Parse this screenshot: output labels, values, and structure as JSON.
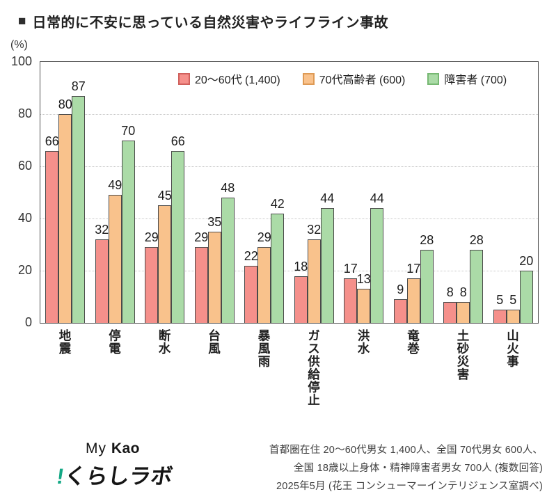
{
  "header": {
    "marker": "■",
    "title": "日常的に不安に思っている自然災害やライフライン事故"
  },
  "chart_data": {
    "type": "bar",
    "title": "日常的に不安に思っている自然災害やライフライン事故",
    "y_unit": "(%)",
    "ylim": [
      0,
      100
    ],
    "yticks": [
      0,
      20,
      40,
      60,
      80,
      100
    ],
    "grid": "horizontal dotted lines at 20, 40, 60, 80",
    "legend_position": "inside plot, top center-right",
    "bar_border_color": "#4a4a4a",
    "categories": [
      "地震",
      "停電",
      "断水",
      "台風",
      "暴風雨",
      "ガス供給停止",
      "洪水",
      "竜巻",
      "土砂災害",
      "山火事"
    ],
    "series": [
      {
        "name": "20〜60代 (1,400)",
        "fill": "#F5908B",
        "legend_border": "#D0605C",
        "values": [
          66,
          32,
          29,
          29,
          22,
          18,
          17,
          9,
          8,
          5
        ]
      },
      {
        "name": "70代高齢者 (600)",
        "fill": "#F9C28C",
        "legend_border": "#DE9A55",
        "values": [
          80,
          49,
          45,
          35,
          29,
          32,
          13,
          17,
          8,
          5
        ]
      },
      {
        "name": "障害者 (700)",
        "fill": "#ABDBA7",
        "legend_border": "#77B873",
        "values": [
          87,
          70,
          66,
          48,
          42,
          44,
          44,
          28,
          28,
          20
        ]
      }
    ]
  },
  "footer": {
    "logo": {
      "line1_my": "My",
      "line1_kao": "Kao",
      "mark": "!",
      "line2": "くらしラボ",
      "accent_color": "#14A885"
    },
    "note_lines": [
      "首都圏在住 20〜60代男女 1,400人、全国 70代男女 600人、",
      "全国 18歳以上身体・精神障害者男女 700人 (複数回答)",
      "2025年5月 (花王 コンシューマーインテリジェンス室調べ)"
    ]
  }
}
